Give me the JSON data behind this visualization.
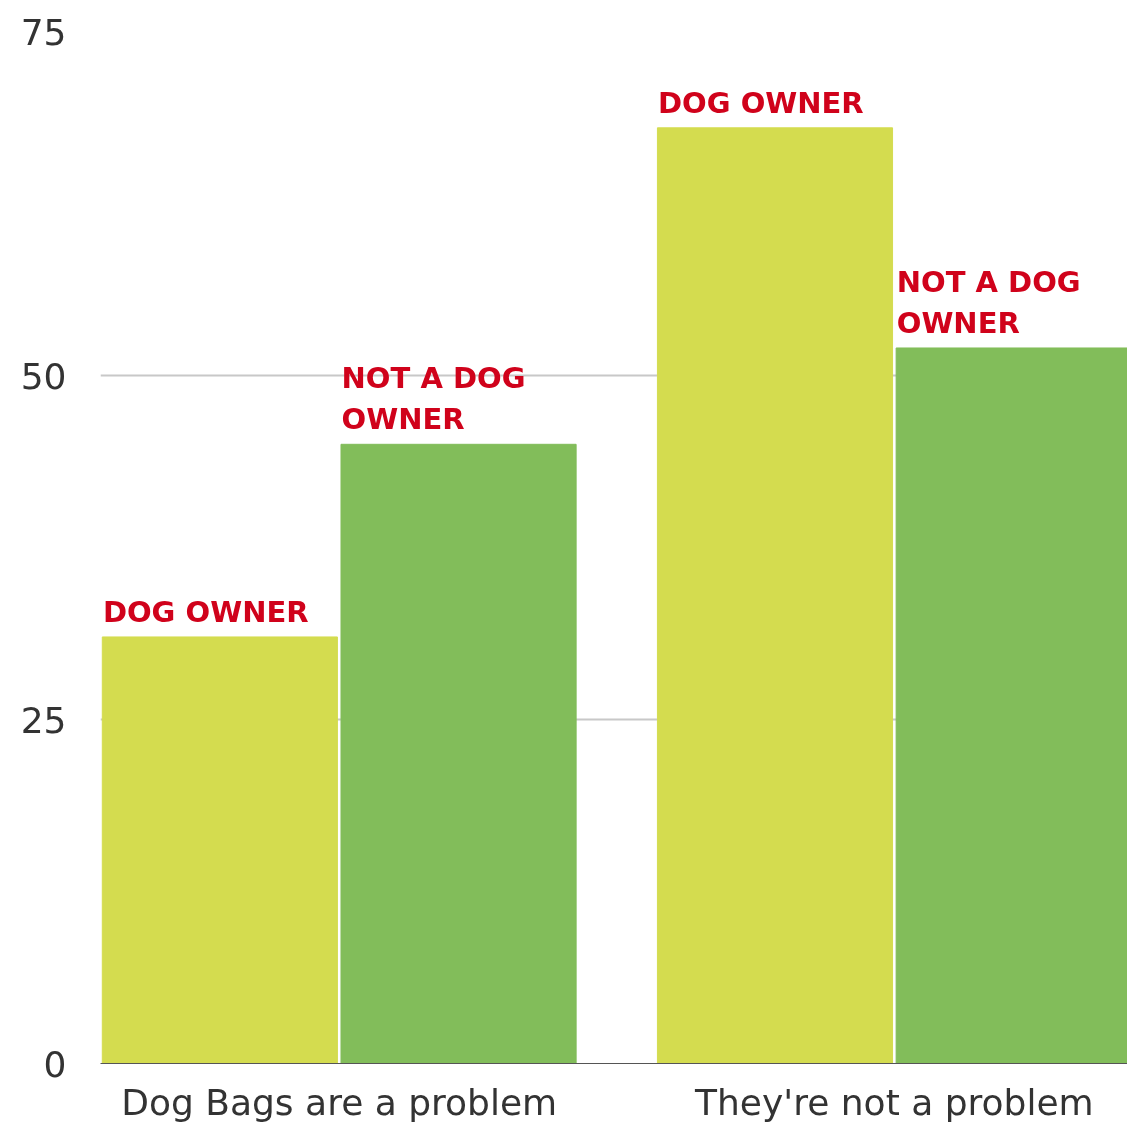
{
  "chart_data": {
    "type": "bar",
    "categories": [
      "Dog Bags are a problem",
      "They're not a problem"
    ],
    "series": [
      {
        "color": "#d4dc4f",
        "values": [
          31,
          68
        ],
        "value_labels": [
          "DOG OWNER",
          "DOG OWNER"
        ]
      },
      {
        "color": "#82bd5a",
        "values": [
          45,
          52
        ],
        "value_labels": [
          "NOT A DOG OWNER",
          "NOT A DOG OWNER"
        ]
      }
    ],
    "ylim": [
      0,
      75
    ],
    "yticks": [
      0,
      25,
      50,
      75
    ],
    "grid": "y"
  }
}
